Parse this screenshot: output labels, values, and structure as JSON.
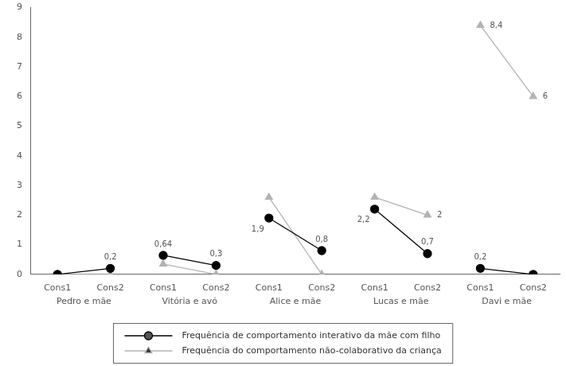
{
  "chart_data": {
    "type": "line",
    "categories": [
      "Cons1",
      "Cons2",
      "Cons1",
      "Cons2",
      "Cons1",
      "Cons2",
      "Cons1",
      "Cons2",
      "Cons1",
      "Cons2"
    ],
    "groups": [
      "Pedro e mãe",
      "Vitória e avó",
      "Alice e mãe",
      "Lucas e mãe",
      "Davi e mãe"
    ],
    "series": [
      {
        "name": "Frequência de comportamento interativo da mãe com filho",
        "color": "#000000",
        "marker": "circle",
        "values": [
          0,
          0.2,
          0.64,
          0.3,
          1.9,
          0.8,
          2.2,
          0.7,
          0.2,
          0
        ],
        "value_labels": [
          null,
          "0,2",
          "0,64",
          "0,3",
          "1,9",
          "0,8",
          "2,2",
          "0,7",
          "0,2",
          null
        ]
      },
      {
        "name": "Frequência do comportamento não-colaborativo da criança",
        "color": "#b3b3b3",
        "marker": "triangle",
        "values": [
          0,
          0,
          0.35,
          0,
          2.6,
          0,
          2.6,
          2,
          8.4,
          6
        ],
        "value_labels": [
          null,
          null,
          null,
          null,
          null,
          null,
          null,
          "2",
          "8,4",
          "6"
        ]
      }
    ],
    "ylim": [
      0,
      9
    ],
    "yticks": [
      0,
      1,
      2,
      3,
      4,
      5,
      6,
      7,
      8,
      9
    ],
    "grid": false,
    "legend": "bottom",
    "data_labels": true
  }
}
